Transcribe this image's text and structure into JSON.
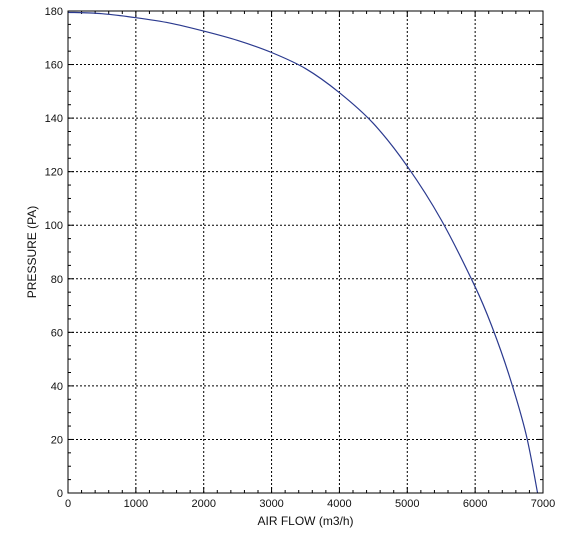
{
  "chart_data": {
    "type": "line",
    "title": "",
    "xlabel": "AIR FLOW (m3/h)",
    "ylabel": "PRESSURE (PA)",
    "xlim": [
      0,
      7000
    ],
    "ylim": [
      0,
      180
    ],
    "x_ticks": [
      "0",
      "1000",
      "2000",
      "3000",
      "4000",
      "5000",
      "6000",
      "7000"
    ],
    "y_ticks": [
      "0",
      "20",
      "40",
      "60",
      "80",
      "100",
      "120",
      "140",
      "160",
      "180"
    ],
    "grid": true,
    "legend": "none",
    "series": [
      {
        "color": "#2b3a8f",
        "x": [
          0,
          500,
          1000,
          1500,
          2000,
          2500,
          3000,
          3500,
          4000,
          4500,
          5000,
          5500,
          6000,
          6250,
          6500,
          6750,
          6920
        ],
        "y": [
          179.5,
          179,
          177.5,
          175.5,
          172.5,
          169,
          164.5,
          158.5,
          149.5,
          138,
          122,
          102,
          77,
          62,
          44,
          22,
          0
        ]
      }
    ]
  }
}
